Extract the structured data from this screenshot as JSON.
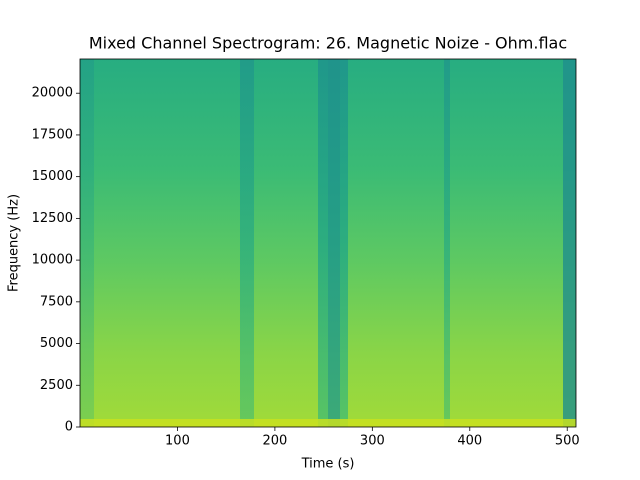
{
  "chart_data": {
    "type": "spectrogram",
    "title": "Mixed Channel Spectrogram: 26. Magnetic Noize - Ohm.flac",
    "x_label": "Time (s)",
    "y_label": "Frequency (Hz)",
    "xlim": [
      0,
      509
    ],
    "ylim": [
      0,
      22050
    ],
    "xticks": [
      100,
      200,
      300,
      400,
      500
    ],
    "yticks": [
      0,
      2500,
      5000,
      7500,
      10000,
      12500,
      15000,
      17500,
      20000
    ]
  }
}
